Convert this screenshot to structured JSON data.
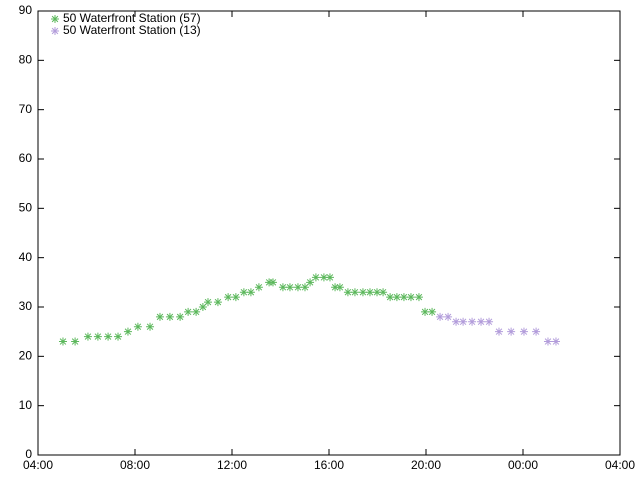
{
  "chart_data": {
    "type": "scatter",
    "xlim": [
      4,
      28
    ],
    "xticks": [
      {
        "value": 4,
        "label": "04:00"
      },
      {
        "value": 8,
        "label": "08:00"
      },
      {
        "value": 12,
        "label": "12:00"
      },
      {
        "value": 16,
        "label": "16:00"
      },
      {
        "value": 20,
        "label": "20:00"
      },
      {
        "value": 24,
        "label": "00:00"
      },
      {
        "value": 28,
        "label": "04:00"
      }
    ],
    "ylim": [
      0,
      90
    ],
    "yticks": [
      0,
      10,
      20,
      30,
      40,
      50,
      60,
      70,
      80,
      90
    ],
    "legend": "top-left",
    "series": [
      {
        "name": "50 Waterfront Station (57)",
        "color": "#5cb85c",
        "x": [
          5.03,
          5.53,
          6.06,
          6.47,
          6.89,
          7.3,
          7.71,
          8.12,
          8.62,
          9.03,
          9.44,
          9.86,
          10.19,
          10.52,
          10.8,
          11.01,
          11.42,
          11.84,
          12.16,
          12.49,
          12.78,
          13.11,
          13.53,
          13.69,
          14.1,
          14.39,
          14.72,
          15.01,
          15.22,
          15.46,
          15.79,
          16.04,
          16.25,
          16.45,
          16.78,
          17.07,
          17.4,
          17.69,
          17.98,
          18.23,
          18.52,
          18.8,
          19.09,
          19.38,
          19.71,
          19.96,
          20.25
        ],
        "values": [
          23,
          23,
          24,
          24,
          24,
          24,
          25,
          26,
          26,
          28,
          28,
          28,
          29,
          29,
          30,
          31,
          31,
          32,
          32,
          33,
          33,
          34,
          35,
          35,
          34,
          34,
          34,
          34,
          35,
          36,
          36,
          36,
          34,
          34,
          33,
          33,
          33,
          33,
          33,
          33,
          32,
          32,
          32,
          32,
          32,
          29,
          29
        ]
      },
      {
        "name": "50 Waterfront Station (13)",
        "color": "#b39ddb",
        "x": [
          20.58,
          20.91,
          21.24,
          21.53,
          21.9,
          22.27,
          22.6,
          23.01,
          23.51,
          24.04,
          24.54,
          25.03,
          25.36
        ],
        "values": [
          28,
          28,
          27,
          27,
          27,
          27,
          27,
          25,
          25,
          25,
          25,
          23,
          23
        ]
      }
    ]
  }
}
